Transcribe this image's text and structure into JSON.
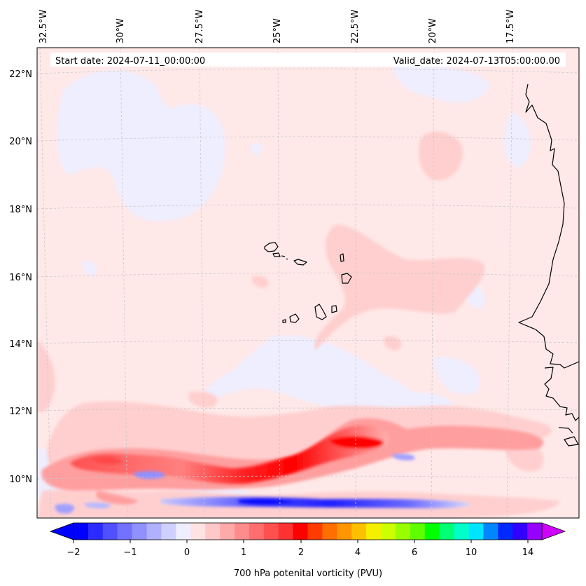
{
  "header": {
    "start_date": "Start date: 2024-07-11_00:00:00",
    "valid_date": "Valid_date: 2024-07-13T05:00:00.00"
  },
  "map": {
    "longitude_labels": [
      "32.5°W",
      "30°W",
      "27.5°W",
      "25°W",
      "22.5°W",
      "20°W",
      "17.5°W"
    ],
    "latitude_labels": [
      "22°N",
      "20°N",
      "18°N",
      "16°N",
      "14°N",
      "12°N",
      "10°N"
    ],
    "field": "700 hPa potential vorticity",
    "colors": {
      "background": "#ffe8e8",
      "light_blue": "#eeeeff",
      "light_red": "#ffcfcf",
      "medium_red": "#ff9e9e",
      "red": "#ff6e6e",
      "strong_red": "#ff2a2a",
      "blue_light": "#a0a0ff",
      "blue": "#3232ff",
      "coast": "#000000",
      "grid": "#c8c8c8"
    }
  },
  "colorbar": {
    "label": "700 hPa potenital vorticity (PVU)",
    "ticks": [
      "−2",
      "−1",
      "0",
      "1",
      "2",
      "4",
      "6",
      "10",
      "14"
    ],
    "colors": [
      "#0000ff",
      "#2b2bff",
      "#5050ff",
      "#7272ff",
      "#9090ff",
      "#b0b0ff",
      "#d0d0ff",
      "#eeeeff",
      "#ffe2e2",
      "#ffc8c8",
      "#ffaaaa",
      "#ff8c8c",
      "#ff6e6e",
      "#ff5050",
      "#ff3232",
      "#ff0000",
      "#ff3b00",
      "#ff6e00",
      "#ff9500",
      "#ffc000",
      "#f5f000",
      "#ccff00",
      "#99ff00",
      "#5fff00",
      "#00ff00",
      "#00ff72",
      "#00ffc8",
      "#00e5ff",
      "#0087ff",
      "#0029ff",
      "#3100ff",
      "#9600ff"
    ]
  }
}
